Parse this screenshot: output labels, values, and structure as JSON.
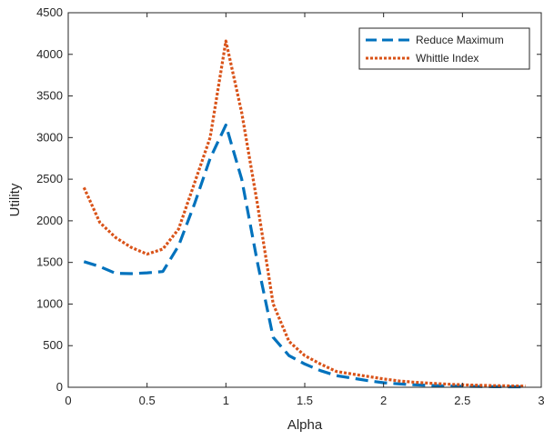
{
  "chart_data": {
    "type": "line",
    "title": "",
    "xlabel": "Alpha",
    "ylabel": "Utility",
    "xlim": [
      0,
      3
    ],
    "ylim": [
      0,
      4500
    ],
    "xticks": [
      0,
      0.5,
      1,
      1.5,
      2,
      2.5,
      3
    ],
    "xtick_labels": [
      "0",
      "0.5",
      "1",
      "1.5",
      "2",
      "2.5",
      "3"
    ],
    "yticks": [
      0,
      500,
      1000,
      1500,
      2000,
      2500,
      3000,
      3500,
      4000,
      4500
    ],
    "ytick_labels": [
      "0",
      "500",
      "1000",
      "1500",
      "2000",
      "2500",
      "3000",
      "3500",
      "4000",
      "4500"
    ],
    "grid": false,
    "legend_position": "top-right",
    "x": [
      0.1,
      0.2,
      0.3,
      0.4,
      0.5,
      0.6,
      0.7,
      0.8,
      0.9,
      1.0,
      1.1,
      1.2,
      1.3,
      1.4,
      1.5,
      1.6,
      1.7,
      1.8,
      1.9,
      2.0,
      2.1,
      2.2,
      2.3,
      2.4,
      2.5,
      2.6,
      2.7,
      2.8,
      2.9
    ],
    "series": [
      {
        "name": "Reduce Maximum",
        "color": "#0072BD",
        "style": "dashed",
        "values": [
          1510,
          1450,
          1370,
          1365,
          1375,
          1390,
          1700,
          2200,
          2750,
          3150,
          2500,
          1500,
          600,
          380,
          280,
          200,
          140,
          110,
          80,
          55,
          40,
          30,
          22,
          16,
          12,
          9,
          7,
          5,
          4
        ]
      },
      {
        "name": "Whittle Index",
        "color": "#D95319",
        "style": "dotted",
        "values": [
          2400,
          1980,
          1800,
          1680,
          1600,
          1660,
          1900,
          2450,
          3000,
          4160,
          3300,
          2200,
          1000,
          550,
          380,
          280,
          190,
          160,
          130,
          100,
          75,
          60,
          48,
          38,
          30,
          24,
          20,
          16,
          14
        ]
      }
    ]
  }
}
